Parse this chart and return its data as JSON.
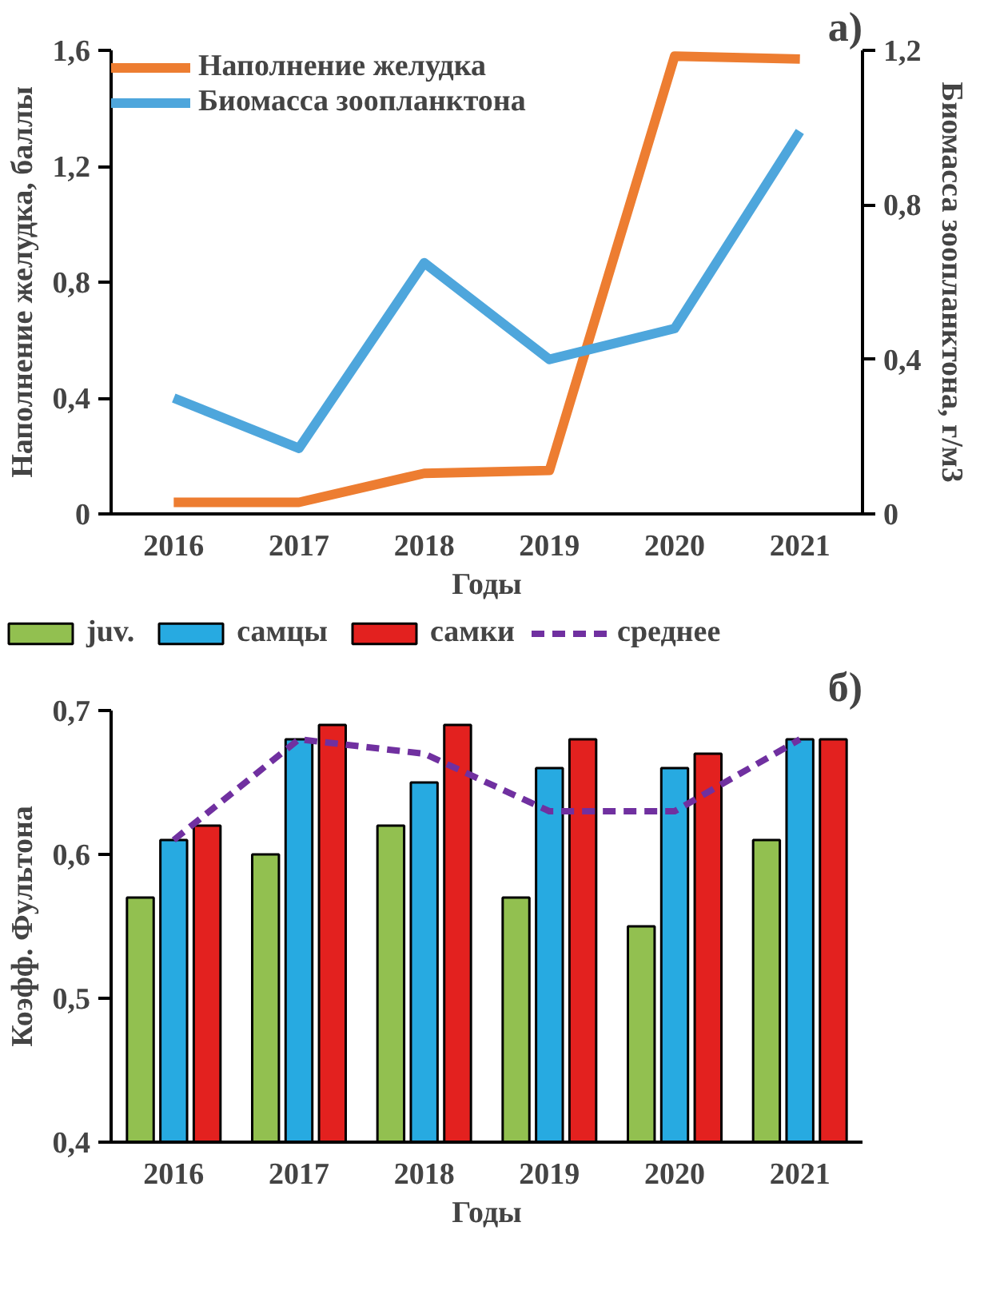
{
  "chart_data": [
    {
      "type": "line",
      "categories": [
        "2016",
        "2017",
        "2018",
        "2019",
        "2020",
        "2021"
      ],
      "xlabel": "Годы",
      "ylabel": "Наполнение желудка, баллы",
      "y2label": "Биомасса зоопланктона, г/м3",
      "annotations": [
        "а)"
      ],
      "series": [
        {
          "name": "Наполнение желудка",
          "color": "#ed7d31",
          "values": [
            0.04,
            0.04,
            0.14,
            0.15,
            1.58,
            1.57
          ]
        },
        {
          "name": "Биомасса зоопланктона",
          "color": "#4ea6dc",
          "axis": "y2",
          "values": [
            0.3,
            0.17,
            0.65,
            0.4,
            0.48,
            0.99
          ]
        }
      ],
      "ylim": [
        0,
        1.6
      ],
      "yticks": [
        {
          "value": 0,
          "label": "0"
        },
        {
          "value": 0.4,
          "label": "0,4"
        },
        {
          "value": 0.8,
          "label": "0,8"
        },
        {
          "value": 1.2,
          "label": "1,2"
        },
        {
          "value": 1.6,
          "label": "1,6"
        }
      ],
      "y2lim": [
        0,
        1.2
      ],
      "y2ticks": [
        {
          "value": 0,
          "label": "0"
        },
        {
          "value": 0.4,
          "label": "0,4"
        },
        {
          "value": 0.8,
          "label": "0,8"
        },
        {
          "value": 1.2,
          "label": "1,2"
        }
      ],
      "legend": "top left",
      "grid": false
    },
    {
      "type": "bar",
      "categories": [
        "2016",
        "2017",
        "2018",
        "2019",
        "2020",
        "2021"
      ],
      "xlabel": "Годы",
      "ylabel": "Коэфф. Фультона",
      "annotations": [
        "б)"
      ],
      "series": [
        {
          "name": "juv.",
          "color": "#92c050",
          "values": [
            0.57,
            0.6,
            0.62,
            0.57,
            0.55,
            0.61
          ]
        },
        {
          "name": "самцы",
          "color": "#27aae1",
          "values": [
            0.61,
            0.68,
            0.65,
            0.66,
            0.66,
            0.68
          ]
        },
        {
          "name": "самки",
          "color": "#e3211f",
          "values": [
            0.62,
            0.69,
            0.69,
            0.68,
            0.67,
            0.68
          ]
        },
        {
          "name": "среднее",
          "type": "line",
          "line_style": "dashed",
          "color": "#7030a0",
          "values": [
            0.61,
            0.68,
            0.67,
            0.63,
            0.63,
            0.68
          ]
        }
      ],
      "ylim": [
        0.4,
        0.7
      ],
      "yticks": [
        {
          "value": 0.4,
          "label": "0,4"
        },
        {
          "value": 0.5,
          "label": "0,5"
        },
        {
          "value": 0.6,
          "label": "0,6"
        },
        {
          "value": 0.7,
          "label": "0,7"
        }
      ],
      "legend": "top",
      "grid": false
    }
  ]
}
